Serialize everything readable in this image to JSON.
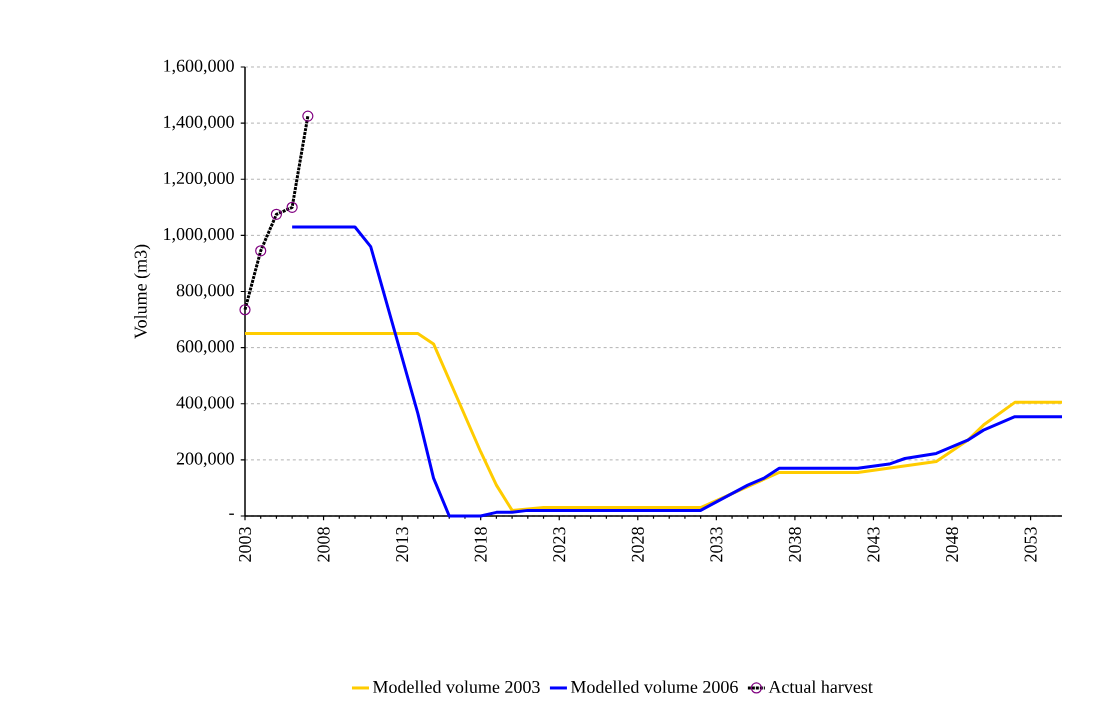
{
  "chart_data": {
    "type": "line",
    "ylabel": "Volume (m3)",
    "xlim": [
      2003,
      2055
    ],
    "xticks": [
      2003,
      2008,
      2013,
      2018,
      2023,
      2028,
      2033,
      2038,
      2043,
      2048,
      2053
    ],
    "ylim": [
      0,
      1600000
    ],
    "yticks": [
      {
        "value": 0,
        "label": "-"
      },
      {
        "value": 200000,
        "label": "200,000"
      },
      {
        "value": 400000,
        "label": "400,000"
      },
      {
        "value": 600000,
        "label": "600,000"
      },
      {
        "value": 800000,
        "label": "800,000"
      },
      {
        "value": 1000000,
        "label": "1,000,000"
      },
      {
        "value": 1200000,
        "label": "1,200,000"
      },
      {
        "value": 1400000,
        "label": "1,400,000"
      },
      {
        "value": 1600000,
        "label": "1,600,000"
      }
    ],
    "grid": "y",
    "legend": "bottom",
    "series": [
      {
        "name": "Modelled volume 2003",
        "color": "#ffcc00",
        "x": [
          2003,
          2014,
          2015,
          2018,
          2019,
          2020,
          2022,
          2032,
          2037,
          2042,
          2047,
          2049,
          2050,
          2052,
          2055
        ],
        "values": [
          650000,
          650000,
          613000,
          229000,
          110000,
          20000,
          30000,
          30000,
          155000,
          155000,
          194000,
          270000,
          324000,
          405000,
          405000
        ]
      },
      {
        "name": "Modelled volume 2006",
        "color": "#0000ff",
        "x": [
          2006,
          2010,
          2011,
          2014,
          2015,
          2016,
          2018,
          2019,
          2020,
          2021,
          2032,
          2035,
          2036,
          2037,
          2042,
          2044,
          2045,
          2047,
          2049,
          2050,
          2052,
          2055
        ],
        "values": [
          1030000,
          1030000,
          960000,
          366000,
          135000,
          0,
          0,
          13000,
          13000,
          20000,
          20000,
          110000,
          134000,
          170000,
          170000,
          185000,
          205000,
          223000,
          270000,
          306000,
          354000,
          354000
        ]
      },
      {
        "name": "Actual harvest",
        "color": "#000000",
        "marker": "circle",
        "line_style": "dotted",
        "x": [
          2003,
          2004,
          2005,
          2006,
          2007
        ],
        "values": [
          735000,
          945000,
          1075000,
          1100000,
          1425000
        ]
      }
    ]
  }
}
